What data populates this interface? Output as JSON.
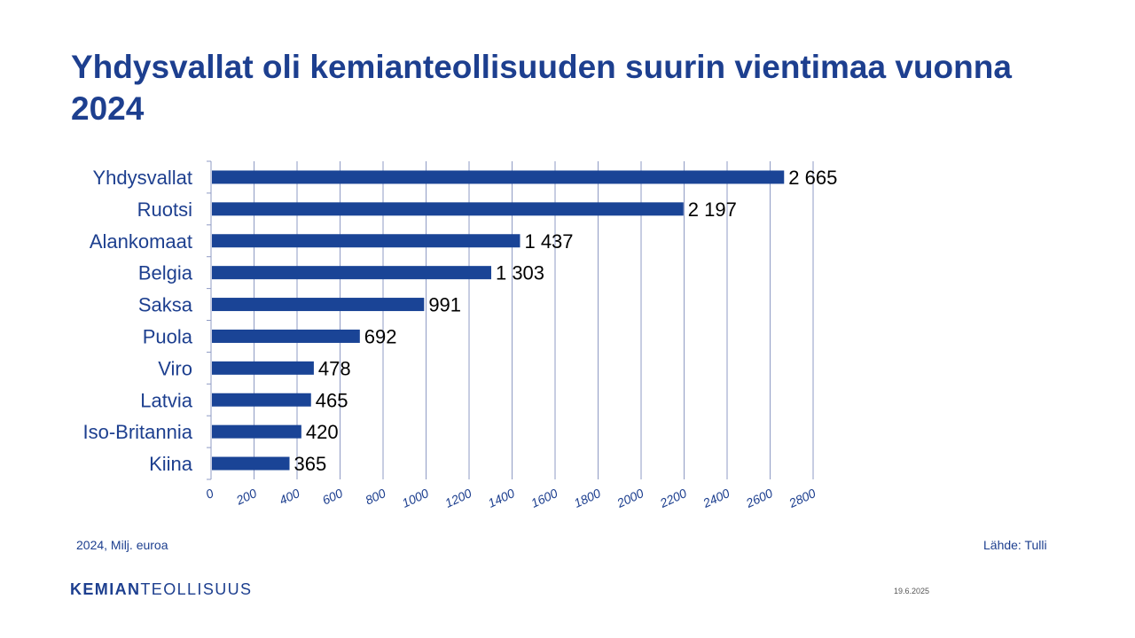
{
  "page": {
    "title": "Yhdysvallat oli kemianteollisuuden suurin vientimaa vuonna 2024",
    "unit_note": "2024, Milj. euroa",
    "source": "Lähde: Tulli",
    "logo_bold": "KEMIAN",
    "logo_light": "TEOLLISUUS",
    "date": "19.6.2025"
  },
  "colors": {
    "bar": "#1a4496",
    "title": "#1d3f8f",
    "grid": "#8f9bc4",
    "label": "#1d3f8f",
    "value": "#000000"
  },
  "chart_data": {
    "type": "bar",
    "orientation": "horizontal",
    "categories": [
      "Yhdysvallat",
      "Ruotsi",
      "Alankomaat",
      "Belgia",
      "Saksa",
      "Puola",
      "Viro",
      "Latvia",
      "Iso-Britannia",
      "Kiina"
    ],
    "values": [
      2665,
      2197,
      1437,
      1303,
      991,
      692,
      478,
      465,
      420,
      365
    ],
    "value_labels": [
      "2 665",
      "2 197",
      "1 437",
      "1 303",
      "991",
      "692",
      "478",
      "465",
      "420",
      "365"
    ],
    "xlim": [
      0,
      2800
    ],
    "xticks": [
      0,
      200,
      400,
      600,
      800,
      1000,
      1200,
      1400,
      1600,
      1800,
      2000,
      2200,
      2400,
      2600,
      2800
    ],
    "grid": true,
    "legend": "none"
  }
}
